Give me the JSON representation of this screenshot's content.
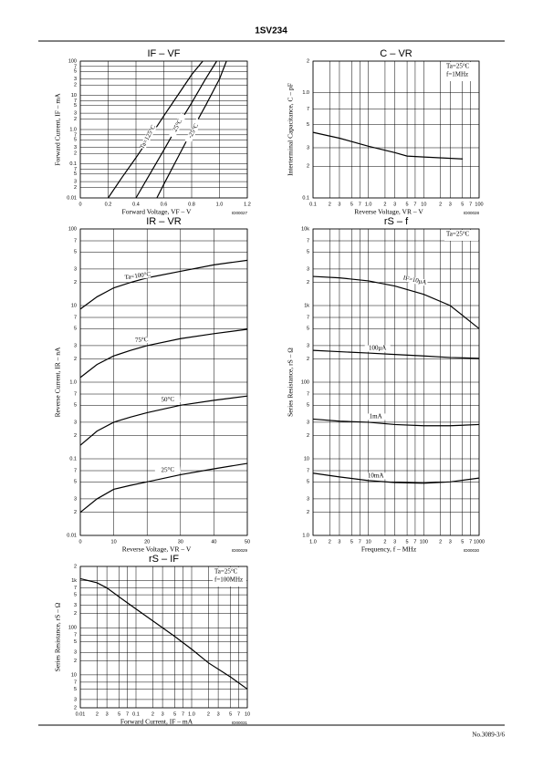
{
  "header": {
    "title": "1SV234"
  },
  "footer": {
    "page": "No.3089-3/6"
  },
  "chart_data": [
    {
      "type": "line",
      "title": "IF – VF",
      "x_label": "Forward Voltage, VF – V",
      "y_label": "Forward Current, IF – mA",
      "code": "ID00027",
      "xscale": "linear",
      "yscale": "log",
      "grid": true,
      "color": "#000000",
      "xlim": [
        0,
        1.2
      ],
      "ylim": [
        0.01,
        100
      ],
      "xticks": [
        0,
        0.2,
        0.4,
        0.6,
        0.8,
        {
          "value": 1,
          "label": "1.0"
        },
        1.2
      ],
      "yticks": [
        0.01,
        {
          "value": 0.02,
          "label": "2"
        },
        {
          "value": 0.03,
          "label": "3"
        },
        {
          "value": 0.05,
          "label": "5"
        },
        {
          "value": 0.07,
          "label": "7"
        },
        0.1,
        {
          "value": 0.2,
          "label": "2"
        },
        {
          "value": 0.3,
          "label": "3"
        },
        {
          "value": 0.5,
          "label": "5"
        },
        {
          "value": 0.7,
          "label": "7"
        },
        {
          "value": 1,
          "label": "1.0"
        },
        2,
        3,
        5,
        7,
        10,
        {
          "value": 20,
          "label": "2"
        },
        {
          "value": 30,
          "label": "3"
        },
        {
          "value": 50,
          "label": "5"
        },
        {
          "value": 70,
          "label": "7"
        },
        100
      ],
      "series": [
        {
          "name": "Ta=125°C",
          "x": [
            0.2,
            0.3,
            0.4,
            0.5,
            0.6,
            0.7,
            0.8,
            0.88
          ],
          "values": [
            0.01,
            0.04,
            0.15,
            0.6,
            2.5,
            10,
            40,
            100
          ]
        },
        {
          "name": "25°C",
          "x": [
            0.4,
            0.5,
            0.6,
            0.7,
            0.8,
            0.9,
            0.98
          ],
          "values": [
            0.01,
            0.05,
            0.25,
            1.3,
            6,
            30,
            100
          ]
        },
        {
          "name": "-25°C",
          "x": [
            0.55,
            0.6,
            0.7,
            0.8,
            0.9,
            1.0,
            1.05
          ],
          "values": [
            0.01,
            0.025,
            0.15,
            0.9,
            5,
            30,
            100
          ]
        }
      ]
    },
    {
      "type": "line",
      "title": "C – VR",
      "x_label": "Reverse Voltage, VR – V",
      "y_label": "Interterminal Capacitance, C – pF",
      "code": "ID00028",
      "xscale": "log",
      "yscale": "log",
      "grid": true,
      "color": "#000000",
      "xlim": [
        0.1,
        100
      ],
      "ylim": [
        0.1,
        2
      ],
      "xticks": [
        0.1,
        {
          "value": 0.2,
          "label": "2"
        },
        {
          "value": 0.3,
          "label": "3"
        },
        {
          "value": 0.5,
          "label": "5"
        },
        {
          "value": 0.7,
          "label": "7"
        },
        {
          "value": 1,
          "label": "1.0"
        },
        2,
        3,
        5,
        7,
        10,
        {
          "value": 20,
          "label": "2"
        },
        {
          "value": 30,
          "label": "3"
        },
        {
          "value": 50,
          "label": "5"
        },
        {
          "value": 70,
          "label": "7"
        },
        100
      ],
      "yticks": [
        0.1,
        {
          "value": 0.2,
          "label": "2"
        },
        {
          "value": 0.3,
          "label": "3"
        },
        {
          "value": 0.5,
          "label": "5"
        },
        {
          "value": 0.7,
          "label": "7"
        },
        {
          "value": 1,
          "label": "1.0"
        },
        2
      ],
      "legend": [
        "Ta=25°C",
        "f=1MHz"
      ],
      "x": [
        0.1,
        0.3,
        1,
        3,
        5,
        10,
        50
      ],
      "values": [
        0.42,
        0.37,
        0.31,
        0.27,
        0.25,
        0.245,
        0.235
      ]
    },
    {
      "type": "line",
      "title": "IR – VR",
      "x_label": "Reverse Voltage, VR – V",
      "y_label": "Reverse Current, IR – nA",
      "code": "ID00029",
      "xscale": "linear",
      "yscale": "log",
      "grid": true,
      "color": "#000000",
      "xlim": [
        0,
        50
      ],
      "ylim": [
        0.01,
        100
      ],
      "xticks": [
        0,
        10,
        20,
        30,
        40,
        50
      ],
      "yticks": [
        0.01,
        {
          "value": 0.02,
          "label": "2"
        },
        {
          "value": 0.03,
          "label": "3"
        },
        {
          "value": 0.05,
          "label": "5"
        },
        {
          "value": 0.07,
          "label": "7"
        },
        0.1,
        {
          "value": 0.2,
          "label": "2"
        },
        {
          "value": 0.3,
          "label": "3"
        },
        {
          "value": 0.5,
          "label": "5"
        },
        {
          "value": 0.7,
          "label": "7"
        },
        {
          "value": 1,
          "label": "1.0"
        },
        2,
        3,
        5,
        7,
        10,
        {
          "value": 20,
          "label": "2"
        },
        {
          "value": 30,
          "label": "3"
        },
        {
          "value": 50,
          "label": "5"
        },
        {
          "value": 70,
          "label": "7"
        },
        100
      ],
      "series": [
        {
          "name": "Ta=100°C",
          "x": [
            0,
            5,
            10,
            15,
            20,
            30,
            40,
            50
          ],
          "values": [
            9,
            13,
            17,
            20,
            23,
            28,
            34,
            39
          ]
        },
        {
          "name": "75°C",
          "x": [
            0,
            5,
            10,
            15,
            20,
            30,
            40,
            50
          ],
          "values": [
            1.15,
            1.7,
            2.2,
            2.6,
            3,
            3.7,
            4.3,
            4.9
          ]
        },
        {
          "name": "50°C",
          "x": [
            0,
            5,
            10,
            15,
            20,
            30,
            40,
            50
          ],
          "values": [
            0.15,
            0.23,
            0.3,
            0.35,
            0.4,
            0.5,
            0.58,
            0.66
          ]
        },
        {
          "name": "25°C",
          "x": [
            0,
            5,
            10,
            15,
            20,
            30,
            40,
            50
          ],
          "values": [
            0.02,
            0.03,
            0.04,
            0.045,
            0.05,
            0.062,
            0.074,
            0.087
          ]
        }
      ]
    },
    {
      "type": "line",
      "title": "rS – f",
      "x_label": "Frequency, f – MHz",
      "y_label": "Series Resistance, rS – Ω",
      "code": "ID00030",
      "xscale": "log",
      "yscale": "log",
      "grid": true,
      "color": "#000000",
      "xlim": [
        1,
        1000
      ],
      "ylim": [
        1,
        10000
      ],
      "xticks": [
        {
          "value": 1,
          "label": "1.0"
        },
        2,
        3,
        5,
        7,
        10,
        {
          "value": 20,
          "label": "2"
        },
        {
          "value": 30,
          "label": "3"
        },
        {
          "value": 50,
          "label": "5"
        },
        {
          "value": 70,
          "label": "7"
        },
        100,
        {
          "value": 200,
          "label": "2"
        },
        {
          "value": 300,
          "label": "3"
        },
        {
          "value": 500,
          "label": "5"
        },
        {
          "value": 700,
          "label": "7"
        },
        1000
      ],
      "yticks": [
        {
          "value": 1,
          "label": "1.0"
        },
        2,
        3,
        5,
        7,
        10,
        {
          "value": 20,
          "label": "2"
        },
        {
          "value": 30,
          "label": "3"
        },
        {
          "value": 50,
          "label": "5"
        },
        {
          "value": 70,
          "label": "7"
        },
        100,
        {
          "value": 200,
          "label": "2"
        },
        {
          "value": 300,
          "label": "3"
        },
        {
          "value": 500,
          "label": "5"
        },
        {
          "value": 700,
          "label": "7"
        },
        {
          "value": 1000,
          "label": "1k"
        },
        {
          "value": 2000,
          "label": "2"
        },
        {
          "value": 3000,
          "label": "3"
        },
        {
          "value": 5000,
          "label": "5"
        },
        {
          "value": 7000,
          "label": "7"
        },
        {
          "value": 10000,
          "label": "10k"
        }
      ],
      "legend": [
        "Ta=25°C"
      ],
      "series": [
        {
          "name": "IF=10μA",
          "x": [
            1,
            3,
            10,
            30,
            100,
            300,
            1000
          ],
          "values": [
            2400,
            2300,
            2100,
            1800,
            1400,
            1000,
            500
          ]
        },
        {
          "name": "100μA",
          "x": [
            1,
            3,
            10,
            30,
            100,
            300,
            1000
          ],
          "values": [
            260,
            250,
            240,
            230,
            220,
            210,
            205
          ]
        },
        {
          "name": "1mA",
          "x": [
            1,
            3,
            10,
            30,
            100,
            300,
            1000
          ],
          "values": [
            33,
            31,
            30,
            28,
            27,
            27,
            28
          ]
        },
        {
          "name": "10mA",
          "x": [
            1,
            3,
            10,
            30,
            100,
            300,
            1000
          ],
          "values": [
            6.5,
            5.8,
            5.2,
            4.9,
            4.8,
            5,
            5.6
          ]
        }
      ]
    },
    {
      "type": "line",
      "title": "rS – IF",
      "x_label": "Forward Current, IF – mA",
      "y_label": "Series Resistance, rS – Ω",
      "code": "ID00031",
      "xscale": "log",
      "yscale": "log",
      "grid": true,
      "color": "#000000",
      "xlim": [
        0.01,
        10
      ],
      "ylim": [
        2,
        2000
      ],
      "xticks": [
        0.01,
        {
          "value": 0.02,
          "label": "2"
        },
        {
          "value": 0.03,
          "label": "3"
        },
        {
          "value": 0.05,
          "label": "5"
        },
        {
          "value": 0.07,
          "label": "7"
        },
        0.1,
        {
          "value": 0.2,
          "label": "2"
        },
        {
          "value": 0.3,
          "label": "3"
        },
        {
          "value": 0.5,
          "label": "5"
        },
        {
          "value": 0.7,
          "label": "7"
        },
        {
          "value": 1,
          "label": "1.0"
        },
        2,
        3,
        5,
        7,
        10
      ],
      "yticks": [
        2,
        3,
        5,
        7,
        10,
        {
          "value": 20,
          "label": "2"
        },
        {
          "value": 30,
          "label": "3"
        },
        {
          "value": 50,
          "label": "5"
        },
        {
          "value": 70,
          "label": "7"
        },
        100,
        {
          "value": 200,
          "label": "2"
        },
        {
          "value": 300,
          "label": "3"
        },
        {
          "value": 500,
          "label": "5"
        },
        {
          "value": 700,
          "label": "7"
        },
        {
          "value": 1000,
          "label": "1k"
        },
        {
          "value": 2000,
          "label": "2"
        }
      ],
      "legend": [
        "Ta=25°C",
        "f=100MHz"
      ],
      "x": [
        0.01,
        0.02,
        0.03,
        0.05,
        0.1,
        0.2,
        0.5,
        1,
        2,
        5,
        10
      ],
      "values": [
        1100,
        900,
        700,
        450,
        250,
        140,
        65,
        35,
        18,
        9,
        5
      ]
    }
  ]
}
